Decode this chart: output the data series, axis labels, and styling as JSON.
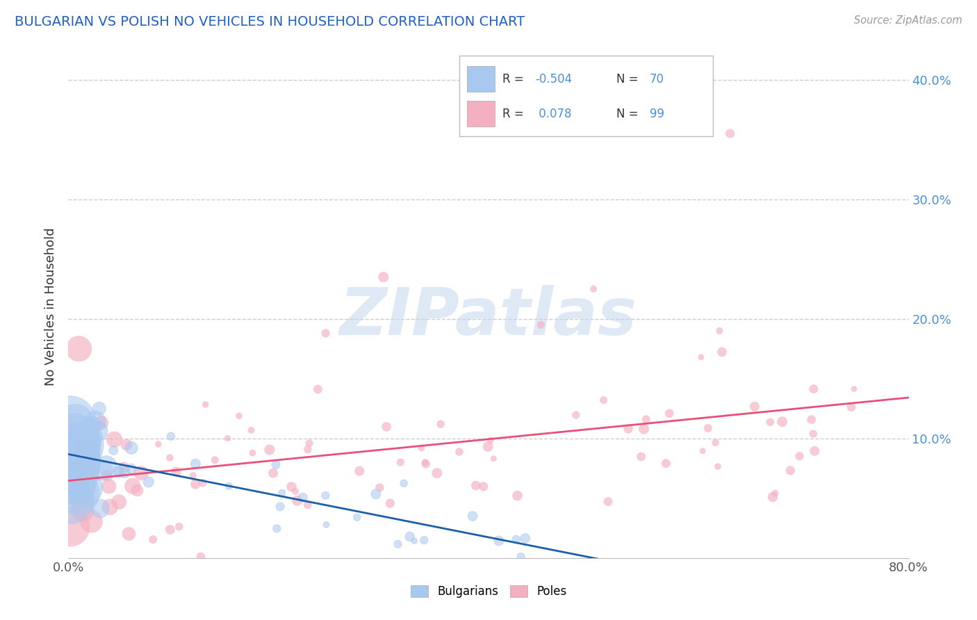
{
  "title": "BULGARIAN VS POLISH NO VEHICLES IN HOUSEHOLD CORRELATION CHART",
  "source": "Source: ZipAtlas.com",
  "ylabel": "No Vehicles in Household",
  "xlim": [
    0.0,
    0.8
  ],
  "ylim": [
    0.0,
    0.42
  ],
  "yticks_right": [
    0.1,
    0.2,
    0.3,
    0.4
  ],
  "yticklabels_right": [
    "10.0%",
    "20.0%",
    "30.0%",
    "40.0%"
  ],
  "bulgarian_color": "#a8c8f0",
  "polish_color": "#f4b0c0",
  "bulgarian_line_color": "#1a5fa8",
  "polish_line_color": "#e8507a",
  "legend_R_bulgarian": "-0.504",
  "legend_N_bulgarian": "70",
  "legend_R_polish": "0.078",
  "legend_N_polish": "99",
  "watermark": "ZIPatlas",
  "background_color": "#ffffff",
  "grid_color": "#cccccc",
  "title_color": "#2060c0",
  "source_color": "#999999",
  "axis_label_color": "#333333",
  "right_tick_color": "#4a90d9"
}
